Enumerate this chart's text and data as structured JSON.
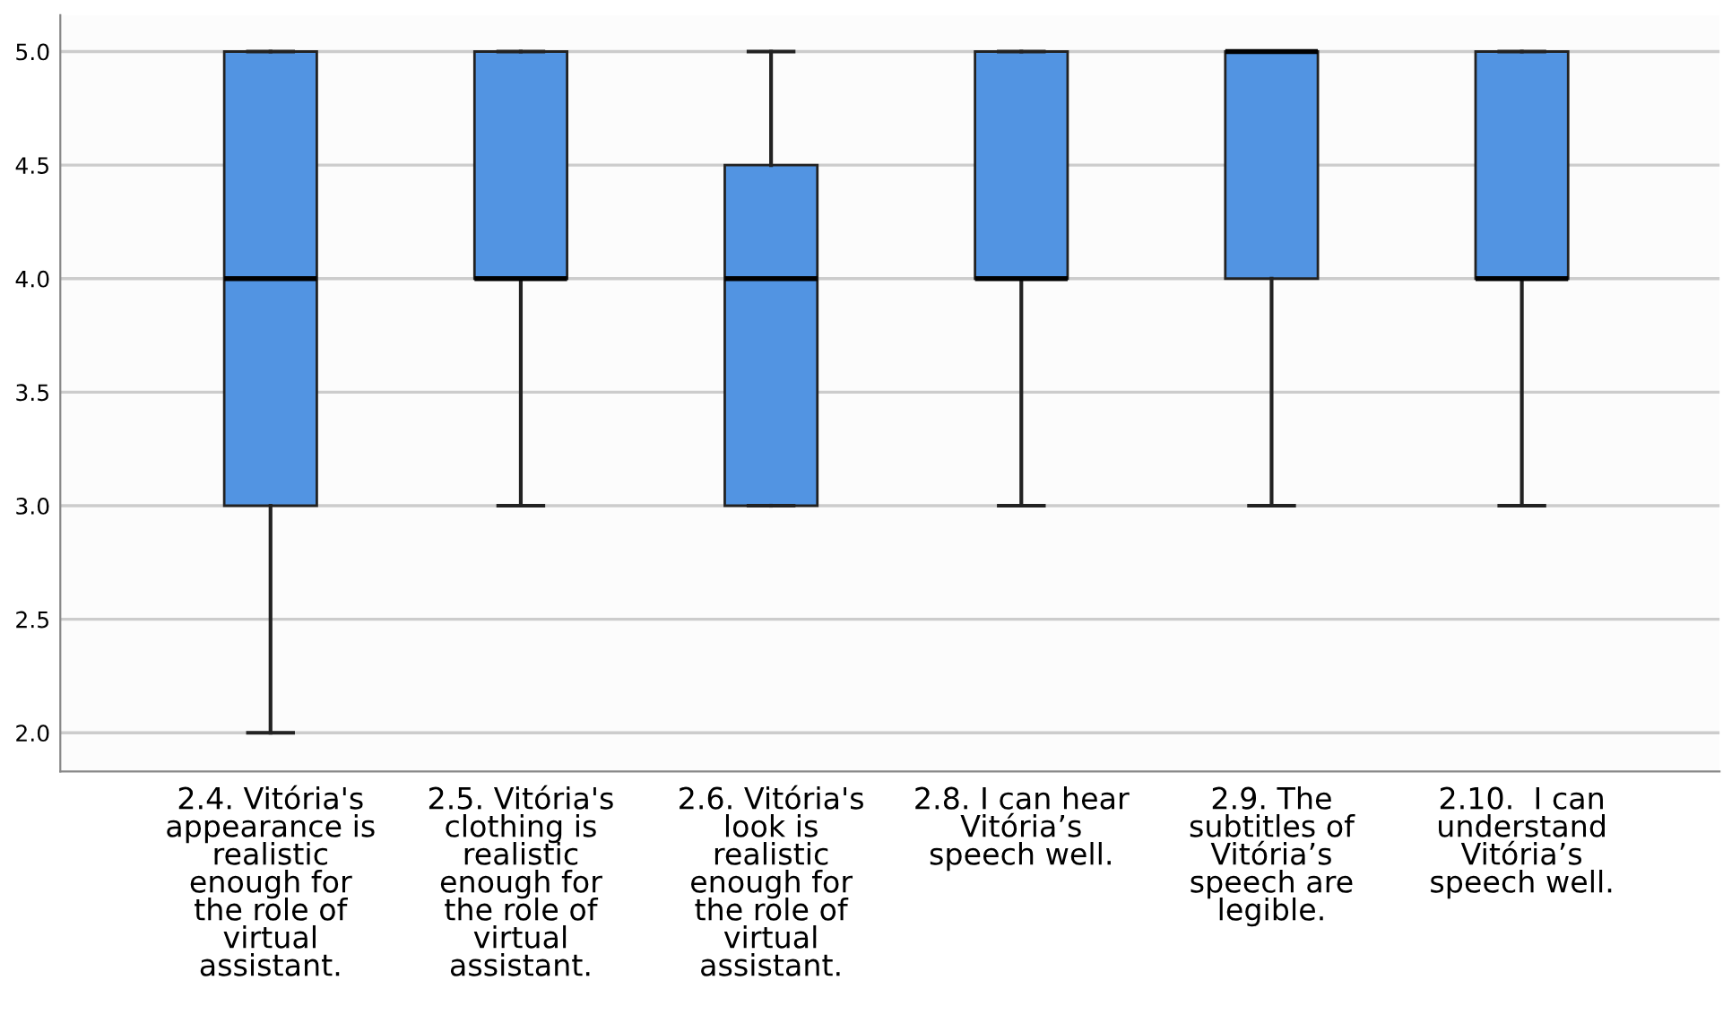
{
  "chart_data": {
    "type": "box",
    "categories": [
      "2.4. Vitória's\nappearance is\nrealistic\nenough for\nthe role of\nvirtual\nassistant.",
      "2.5. Vitória's\nclothing is\nrealistic\nenough for\nthe role of\nvirtual\nassistant.",
      "2.6. Vitória's\nlook is\nrealistic\nenough for\nthe role of\nvirtual\nassistant.",
      "2.8. I can hear\nVitória’s\nspeech well.",
      "2.9. The\nsubtitles of\nVitória’s\nspeech are\nlegible.",
      "2.10.  I can\nunderstand\nVitória’s\nspeech well."
    ],
    "boxes": [
      {
        "low": 2,
        "q1": 3,
        "median": 4,
        "q3": 5,
        "high": 5
      },
      {
        "low": 3,
        "q1": 4,
        "median": 4,
        "q3": 5,
        "high": 5
      },
      {
        "low": 3,
        "q1": 3,
        "median": 4,
        "q3": 4.5,
        "high": 5
      },
      {
        "low": 3,
        "q1": 4,
        "median": 4,
        "q3": 5,
        "high": 5
      },
      {
        "low": 3,
        "q1": 4,
        "median": 5,
        "q3": 5,
        "high": 5
      },
      {
        "low": 3,
        "q1": 4,
        "median": 4,
        "q3": 5,
        "high": 5
      }
    ],
    "color": "#5294e2",
    "ylim": [
      1.83,
      5.16
    ],
    "yticks": [
      {
        "value": 2,
        "label": "2.0"
      },
      {
        "value": 2.5,
        "label": "2.5"
      },
      {
        "value": 3,
        "label": "3.0"
      },
      {
        "value": 3.5,
        "label": "3.5"
      },
      {
        "value": 4,
        "label": "4.0"
      },
      {
        "value": 4.5,
        "label": "4.5"
      },
      {
        "value": 5,
        "label": "5.0"
      }
    ],
    "grid": "y"
  }
}
